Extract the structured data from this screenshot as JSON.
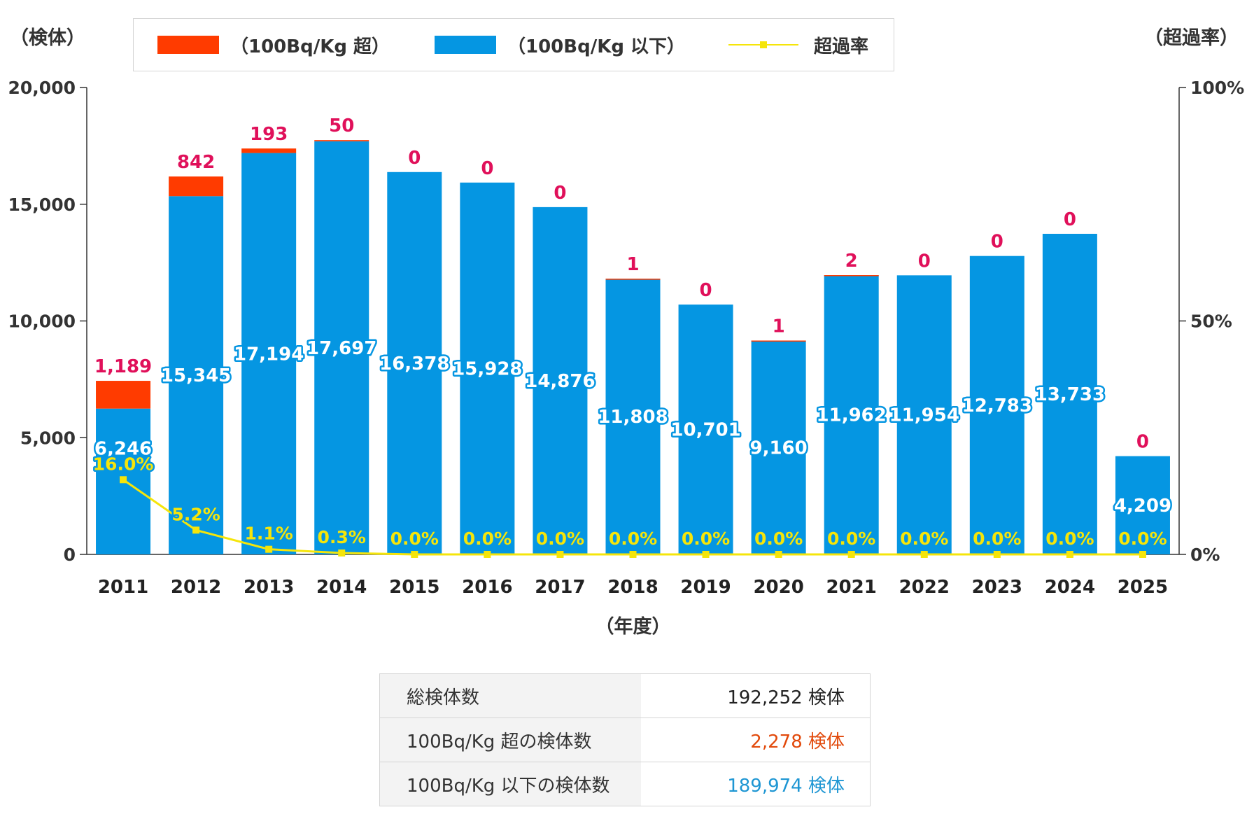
{
  "units": {
    "left": "（検体）",
    "right": "（超過率）"
  },
  "legend": {
    "over_label": "（100Bq/Kg 超）",
    "under_label": "（100Bq/Kg 以下）",
    "rate_label": "超過率"
  },
  "colors": {
    "over": "#ff3b00",
    "under": "#0596e2",
    "rate": "#f5e50a",
    "over_text": "#e0105a",
    "summary_over": "#e24a0c",
    "summary_under": "#1e96d3"
  },
  "chart_data": {
    "type": "bar",
    "stacked": true,
    "categories": [
      "2011",
      "2012",
      "2013",
      "2014",
      "2015",
      "2016",
      "2017",
      "2018",
      "2019",
      "2020",
      "2021",
      "2022",
      "2023",
      "2024",
      "2025"
    ],
    "series": [
      {
        "name": "（100Bq/Kg 以下）",
        "values": [
          6246,
          15345,
          17194,
          17697,
          16378,
          15928,
          14876,
          11808,
          10701,
          9160,
          11962,
          11954,
          12783,
          13733,
          4209
        ]
      },
      {
        "name": "（100Bq/Kg 超）",
        "values": [
          1189,
          842,
          193,
          50,
          0,
          0,
          0,
          1,
          0,
          1,
          2,
          0,
          0,
          0,
          0
        ]
      }
    ],
    "rate_series": {
      "name": "超過率",
      "values": [
        16.0,
        5.2,
        1.1,
        0.3,
        0.0,
        0.0,
        0.0,
        0.0,
        0.0,
        0.0,
        0.0,
        0.0,
        0.0,
        0.0,
        0.0
      ]
    },
    "left_labels": [
      "6,246",
      "15,345",
      "17,194",
      "17,697",
      "16,378",
      "15,928",
      "14,876",
      "11,808",
      "10,701",
      "9,160",
      "11,962",
      "11,954",
      "12,783",
      "13,733",
      "4,209"
    ],
    "over_labels": [
      "1,189",
      "842",
      "193",
      "50",
      "0",
      "0",
      "0",
      "1",
      "0",
      "1",
      "2",
      "0",
      "0",
      "0",
      "0"
    ],
    "rate_labels": [
      "16.0%",
      "5.2%",
      "1.1%",
      "0.3%",
      "0.0%",
      "0.0%",
      "0.0%",
      "0.0%",
      "0.0%",
      "0.0%",
      "0.0%",
      "0.0%",
      "0.0%",
      "0.0%",
      "0.0%"
    ],
    "y_ticks": [
      "0",
      "5,000",
      "10,000",
      "15,000",
      "20,000"
    ],
    "y2_ticks": [
      "0%",
      "50%",
      "100%"
    ],
    "ylim": [
      0,
      20000
    ],
    "y2lim": [
      0,
      100
    ],
    "xlabel": "（年度）",
    "ylabel": "（検体）",
    "y2label": "（超過率）"
  },
  "summary": [
    {
      "label": "総検体数",
      "value": "192,252 検体",
      "kind": "total"
    },
    {
      "label": "100Bq/Kg 超の検体数",
      "value": "2,278 検体",
      "kind": "over"
    },
    {
      "label": "100Bq/Kg 以下の検体数",
      "value": "189,974 検体",
      "kind": "under"
    }
  ]
}
